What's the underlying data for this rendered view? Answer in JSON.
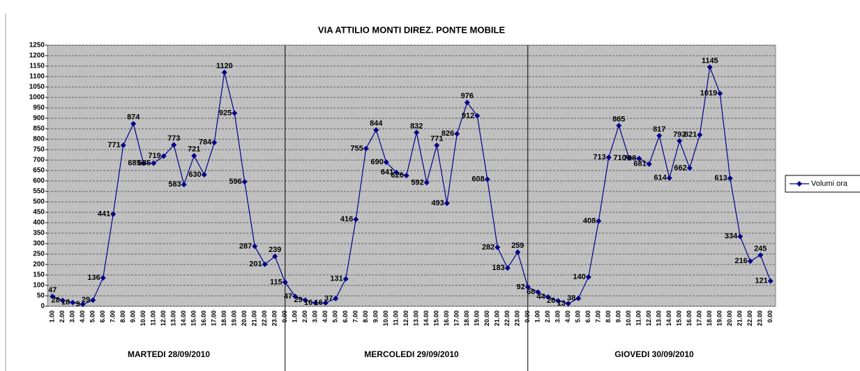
{
  "chart_data": {
    "type": "line",
    "title": "VIA ATTILIO MONTI DIREZ.  PONTE MOBILE",
    "categories": [
      "1.00",
      "2.00",
      "3.00",
      "4.00",
      "5.00",
      "6.00",
      "7.00",
      "8.00",
      "9.00",
      "10.00",
      "11.00",
      "12.00",
      "13.00",
      "14.00",
      "15.00",
      "16.00",
      "17.00",
      "18.00",
      "19.00",
      "20.00",
      "21.00",
      "22.00",
      "23.00",
      "0.00",
      "1.00",
      "2.00",
      "3.00",
      "4.00",
      "5.00",
      "6.00",
      "7.00",
      "8.00",
      "9.00",
      "10.00",
      "11.00",
      "12.00",
      "13.00",
      "14.00",
      "15.00",
      "16.00",
      "17.00",
      "18.00",
      "19.00",
      "20.00",
      "21.00",
      "22.00",
      "23.00",
      "0.00",
      "1.00",
      "2.00",
      "3.00",
      "4.00",
      "5.00",
      "6.00",
      "7.00",
      "8.00",
      "9.00",
      "10.00",
      "11.00",
      "12.00",
      "13.00",
      "14.00",
      "15.00",
      "16.00",
      "17.00",
      "18.00",
      "19.00",
      "20.00",
      "21.00",
      "22.00",
      "23.00",
      "0.00"
    ],
    "group_labels": [
      "MARTEDI 28/09/2010",
      "MERCOLEDI 29/09/2010",
      "GIOVEDI 30/09/2010"
    ],
    "series": [
      {
        "name": "Volumi ora",
        "color": "#00008b",
        "values": [
          47,
          28,
          18,
          9,
          29,
          136,
          441,
          771,
          874,
          685,
          685,
          719,
          773,
          583,
          721,
          630,
          784,
          1120,
          925,
          596,
          287,
          201,
          239,
          115,
          47,
          29,
          16,
          16,
          37,
          131,
          416,
          755,
          844,
          690,
          641,
          626,
          832,
          592,
          771,
          493,
          826,
          976,
          912,
          608,
          282,
          183,
          259,
          92,
          68,
          44,
          26,
          13,
          38,
          140,
          408,
          713,
          865,
          710,
          708,
          681,
          817,
          614,
          792,
          662,
          821,
          1145,
          1019,
          613,
          334,
          216,
          245,
          121
        ]
      }
    ],
    "ylim": [
      0,
      1250
    ],
    "yticks": [
      0,
      50,
      100,
      150,
      200,
      250,
      300,
      350,
      400,
      450,
      500,
      550,
      600,
      650,
      700,
      750,
      800,
      850,
      900,
      950,
      1000,
      1050,
      1100,
      1150,
      1200,
      1250
    ],
    "grid": true,
    "legend": "right"
  }
}
